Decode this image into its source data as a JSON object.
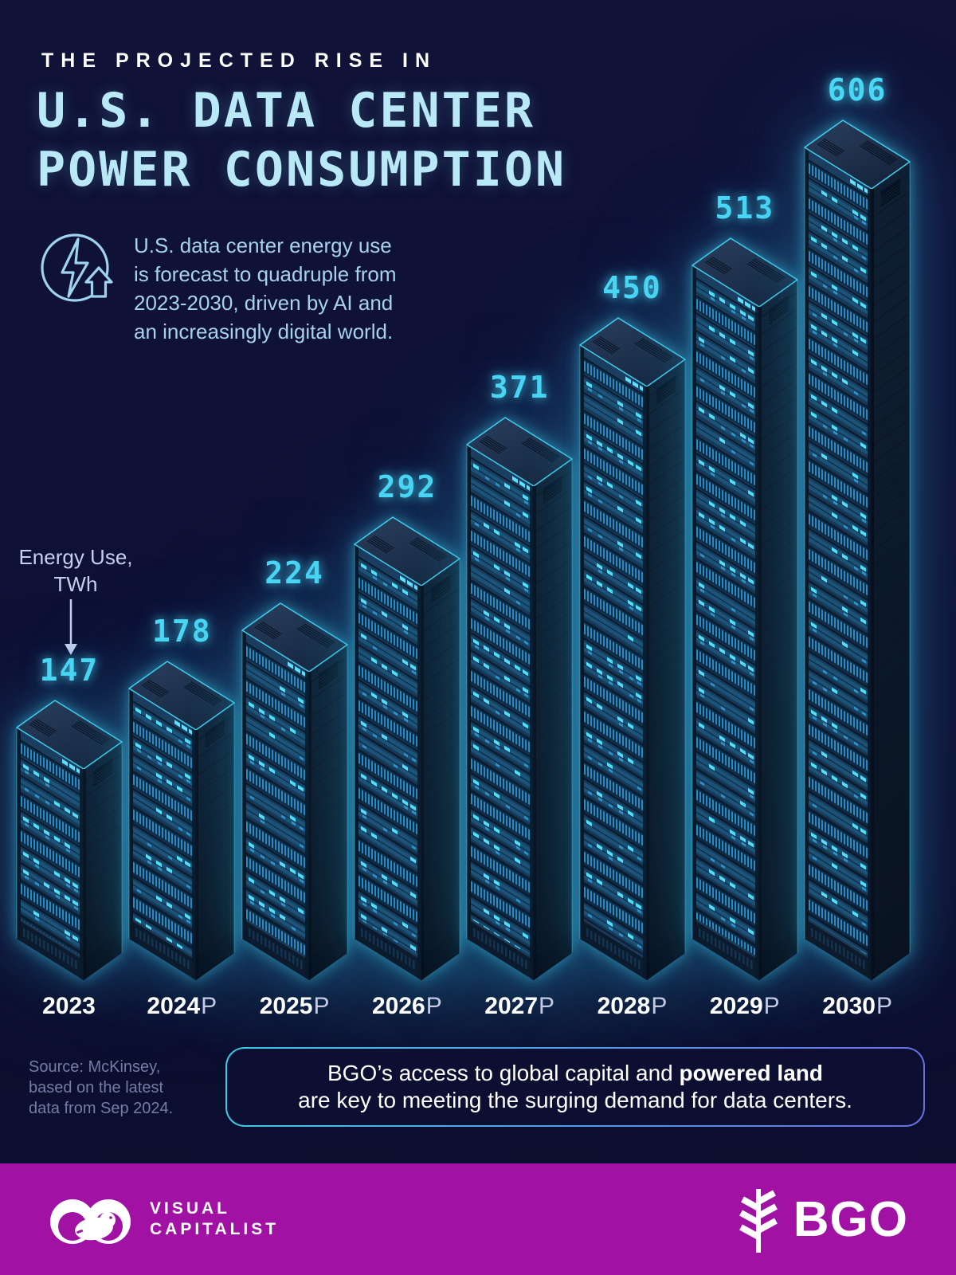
{
  "page": {
    "background": "#0f1136",
    "accent_cyan": "#4ad7f5",
    "title_cyan": "#b9e9f7",
    "footer_magenta": "#a112a4"
  },
  "header": {
    "eyebrow": "THE PROJECTED RISE IN",
    "title_line1": "U.S. DATA CENTER",
    "title_line2": "POWER CONSUMPTION",
    "energy_icon": "lightning-bolt-up-arrow-circle-icon",
    "subtitle_lines": [
      "U.S. data center energy use",
      "is forecast to quadruple from",
      "2023-2030, driven by AI and",
      "an increasingly digital world."
    ]
  },
  "axis": {
    "label_line1": "Energy Use,",
    "label_line2": "TWh",
    "pointer_icon": "down-arrow-icon"
  },
  "chart_data": {
    "type": "bar",
    "title": "U.S. Data Center Power Consumption",
    "categories": [
      "2023",
      "2024P",
      "2025P",
      "2026P",
      "2027P",
      "2028P",
      "2029P",
      "2030P"
    ],
    "values": [
      147,
      178,
      224,
      292,
      371,
      450,
      513,
      606
    ],
    "unit": "TWh",
    "ylabel": "Energy Use, TWh",
    "xlabel": "",
    "legend": "none",
    "grid": "off",
    "bar_style": "isometric-server-rack",
    "value_label_color": "#4ad7f5"
  },
  "source": {
    "line1": "Source: McKinsey,",
    "line2": "based on the latest",
    "line3": "data from Sep 2024."
  },
  "callout": {
    "line1_regular": "BGO’s access to global capital and ",
    "line1_bold": "powered land",
    "line2": "are key to meeting the surging demand for data centers."
  },
  "footer": {
    "vc_icon": "visual-capitalist-binoculars-logo",
    "vc_line1": "VISUAL",
    "vc_line2": "CAPITALIST",
    "bgo_icon": "wheat-branch-logo",
    "bgo_text": "BGO"
  }
}
